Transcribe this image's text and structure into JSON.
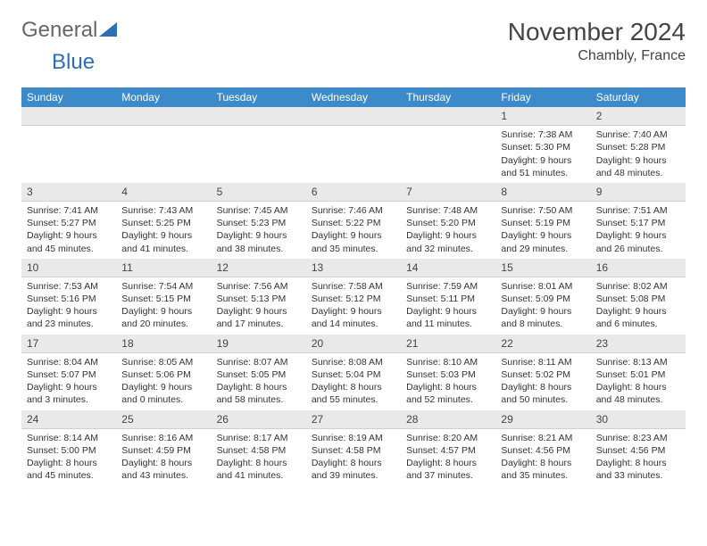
{
  "logo": {
    "part1": "General",
    "part2": "Blue"
  },
  "title": "November 2024",
  "location": "Chambly, France",
  "colors": {
    "header_bg": "#3c8ac9",
    "daynum_bg": "#e9e9e9",
    "text": "#333333",
    "logo_accent": "#2b6fb5"
  },
  "dow": [
    "Sunday",
    "Monday",
    "Tuesday",
    "Wednesday",
    "Thursday",
    "Friday",
    "Saturday"
  ],
  "weeks": [
    [
      {
        "n": "",
        "sr": "",
        "ss": "",
        "dl": ""
      },
      {
        "n": "",
        "sr": "",
        "ss": "",
        "dl": ""
      },
      {
        "n": "",
        "sr": "",
        "ss": "",
        "dl": ""
      },
      {
        "n": "",
        "sr": "",
        "ss": "",
        "dl": ""
      },
      {
        "n": "",
        "sr": "",
        "ss": "",
        "dl": ""
      },
      {
        "n": "1",
        "sr": "Sunrise: 7:38 AM",
        "ss": "Sunset: 5:30 PM",
        "dl": "Daylight: 9 hours and 51 minutes."
      },
      {
        "n": "2",
        "sr": "Sunrise: 7:40 AM",
        "ss": "Sunset: 5:28 PM",
        "dl": "Daylight: 9 hours and 48 minutes."
      }
    ],
    [
      {
        "n": "3",
        "sr": "Sunrise: 7:41 AM",
        "ss": "Sunset: 5:27 PM",
        "dl": "Daylight: 9 hours and 45 minutes."
      },
      {
        "n": "4",
        "sr": "Sunrise: 7:43 AM",
        "ss": "Sunset: 5:25 PM",
        "dl": "Daylight: 9 hours and 41 minutes."
      },
      {
        "n": "5",
        "sr": "Sunrise: 7:45 AM",
        "ss": "Sunset: 5:23 PM",
        "dl": "Daylight: 9 hours and 38 minutes."
      },
      {
        "n": "6",
        "sr": "Sunrise: 7:46 AM",
        "ss": "Sunset: 5:22 PM",
        "dl": "Daylight: 9 hours and 35 minutes."
      },
      {
        "n": "7",
        "sr": "Sunrise: 7:48 AM",
        "ss": "Sunset: 5:20 PM",
        "dl": "Daylight: 9 hours and 32 minutes."
      },
      {
        "n": "8",
        "sr": "Sunrise: 7:50 AM",
        "ss": "Sunset: 5:19 PM",
        "dl": "Daylight: 9 hours and 29 minutes."
      },
      {
        "n": "9",
        "sr": "Sunrise: 7:51 AM",
        "ss": "Sunset: 5:17 PM",
        "dl": "Daylight: 9 hours and 26 minutes."
      }
    ],
    [
      {
        "n": "10",
        "sr": "Sunrise: 7:53 AM",
        "ss": "Sunset: 5:16 PM",
        "dl": "Daylight: 9 hours and 23 minutes."
      },
      {
        "n": "11",
        "sr": "Sunrise: 7:54 AM",
        "ss": "Sunset: 5:15 PM",
        "dl": "Daylight: 9 hours and 20 minutes."
      },
      {
        "n": "12",
        "sr": "Sunrise: 7:56 AM",
        "ss": "Sunset: 5:13 PM",
        "dl": "Daylight: 9 hours and 17 minutes."
      },
      {
        "n": "13",
        "sr": "Sunrise: 7:58 AM",
        "ss": "Sunset: 5:12 PM",
        "dl": "Daylight: 9 hours and 14 minutes."
      },
      {
        "n": "14",
        "sr": "Sunrise: 7:59 AM",
        "ss": "Sunset: 5:11 PM",
        "dl": "Daylight: 9 hours and 11 minutes."
      },
      {
        "n": "15",
        "sr": "Sunrise: 8:01 AM",
        "ss": "Sunset: 5:09 PM",
        "dl": "Daylight: 9 hours and 8 minutes."
      },
      {
        "n": "16",
        "sr": "Sunrise: 8:02 AM",
        "ss": "Sunset: 5:08 PM",
        "dl": "Daylight: 9 hours and 6 minutes."
      }
    ],
    [
      {
        "n": "17",
        "sr": "Sunrise: 8:04 AM",
        "ss": "Sunset: 5:07 PM",
        "dl": "Daylight: 9 hours and 3 minutes."
      },
      {
        "n": "18",
        "sr": "Sunrise: 8:05 AM",
        "ss": "Sunset: 5:06 PM",
        "dl": "Daylight: 9 hours and 0 minutes."
      },
      {
        "n": "19",
        "sr": "Sunrise: 8:07 AM",
        "ss": "Sunset: 5:05 PM",
        "dl": "Daylight: 8 hours and 58 minutes."
      },
      {
        "n": "20",
        "sr": "Sunrise: 8:08 AM",
        "ss": "Sunset: 5:04 PM",
        "dl": "Daylight: 8 hours and 55 minutes."
      },
      {
        "n": "21",
        "sr": "Sunrise: 8:10 AM",
        "ss": "Sunset: 5:03 PM",
        "dl": "Daylight: 8 hours and 52 minutes."
      },
      {
        "n": "22",
        "sr": "Sunrise: 8:11 AM",
        "ss": "Sunset: 5:02 PM",
        "dl": "Daylight: 8 hours and 50 minutes."
      },
      {
        "n": "23",
        "sr": "Sunrise: 8:13 AM",
        "ss": "Sunset: 5:01 PM",
        "dl": "Daylight: 8 hours and 48 minutes."
      }
    ],
    [
      {
        "n": "24",
        "sr": "Sunrise: 8:14 AM",
        "ss": "Sunset: 5:00 PM",
        "dl": "Daylight: 8 hours and 45 minutes."
      },
      {
        "n": "25",
        "sr": "Sunrise: 8:16 AM",
        "ss": "Sunset: 4:59 PM",
        "dl": "Daylight: 8 hours and 43 minutes."
      },
      {
        "n": "26",
        "sr": "Sunrise: 8:17 AM",
        "ss": "Sunset: 4:58 PM",
        "dl": "Daylight: 8 hours and 41 minutes."
      },
      {
        "n": "27",
        "sr": "Sunrise: 8:19 AM",
        "ss": "Sunset: 4:58 PM",
        "dl": "Daylight: 8 hours and 39 minutes."
      },
      {
        "n": "28",
        "sr": "Sunrise: 8:20 AM",
        "ss": "Sunset: 4:57 PM",
        "dl": "Daylight: 8 hours and 37 minutes."
      },
      {
        "n": "29",
        "sr": "Sunrise: 8:21 AM",
        "ss": "Sunset: 4:56 PM",
        "dl": "Daylight: 8 hours and 35 minutes."
      },
      {
        "n": "30",
        "sr": "Sunrise: 8:23 AM",
        "ss": "Sunset: 4:56 PM",
        "dl": "Daylight: 8 hours and 33 minutes."
      }
    ]
  ]
}
